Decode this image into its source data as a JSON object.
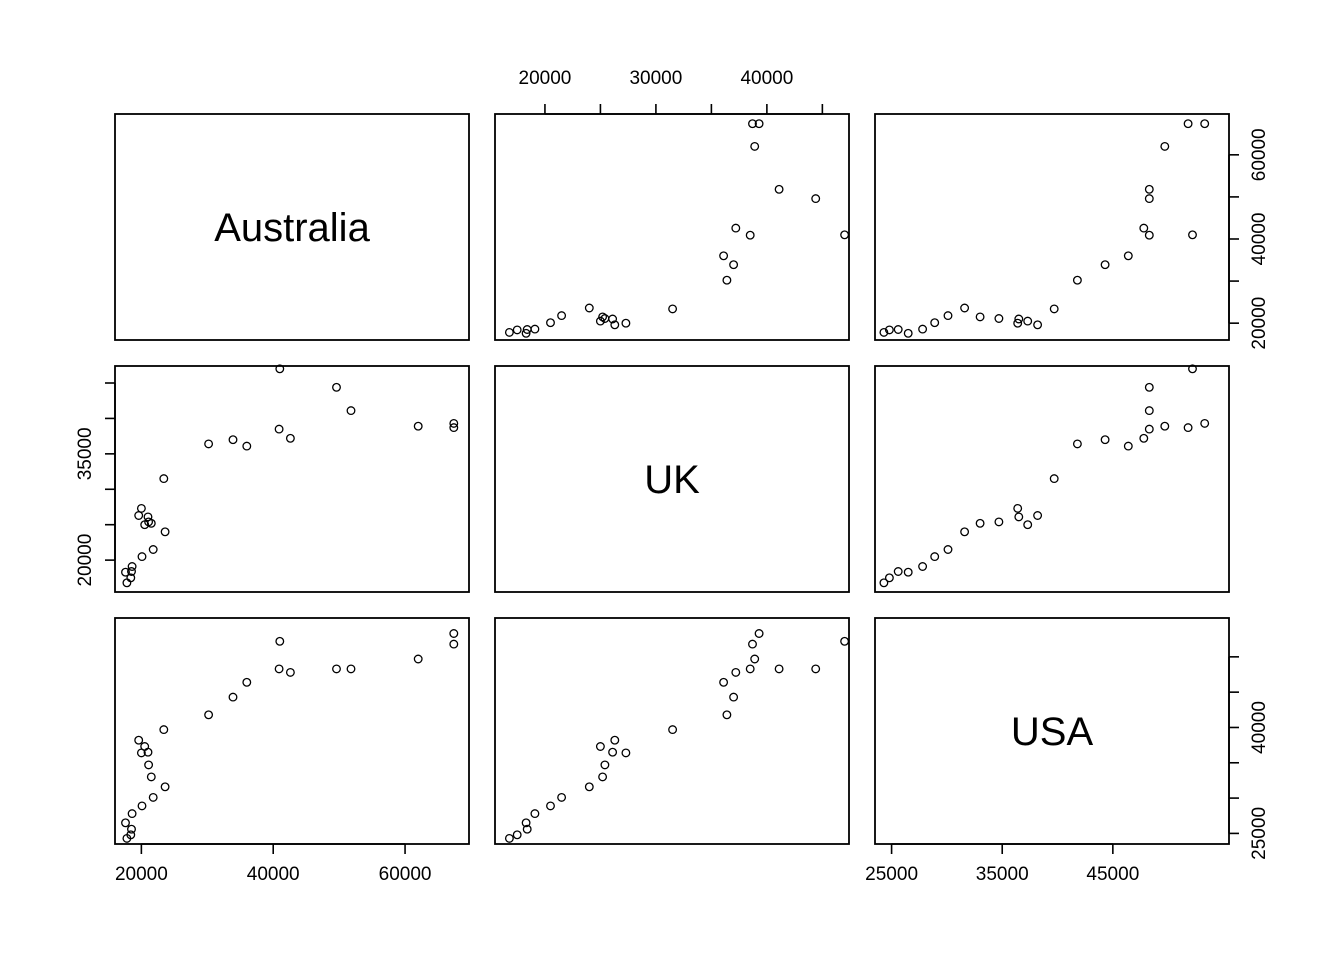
{
  "chart_data": {
    "type": "scatter",
    "kind": "pairs-matrix",
    "variables": [
      "Australia",
      "UK",
      "USA"
    ],
    "axes": {
      "Australia": {
        "ticks": [
          20000,
          40000,
          60000
        ],
        "tick_labels": [
          "20000",
          "40000",
          "60000"
        ],
        "range": [
          16000,
          69700
        ],
        "tick_panels": [
          "bottom",
          "left"
        ]
      },
      "UK": {
        "ticks": [
          20000,
          30000,
          40000
        ],
        "tick_labels": [
          "20000",
          "30000",
          "40000"
        ],
        "left_ticks": [
          20000,
          35000
        ],
        "left_tick_labels": [
          "20000",
          "35000"
        ],
        "range": [
          15500,
          47400
        ],
        "tick_panels": [
          "top",
          "left"
        ]
      },
      "USA": {
        "ticks": [
          25000,
          35000,
          45000
        ],
        "tick_labels": [
          "25000",
          "35000",
          "45000"
        ],
        "right_ticks": [
          25000,
          40000
        ],
        "right_tick_labels": [
          "25000",
          "40000"
        ],
        "range": [
          23500,
          55500
        ],
        "tick_panels": [
          "bottom",
          "right"
        ]
      }
    },
    "right_top_axis": {
      "ticks": [
        20000,
        30000,
        40000,
        50000,
        60000
      ],
      "tick_labels": [
        "20000",
        "",
        "40000",
        "",
        "60000"
      ]
    },
    "observations": [
      {
        "Australia": 17800,
        "UK": 16800,
        "USA": 24300
      },
      {
        "Australia": 18400,
        "UK": 17500,
        "USA": 24800
      },
      {
        "Australia": 17600,
        "UK": 18300,
        "USA": 26500
      },
      {
        "Australia": 18500,
        "UK": 18400,
        "USA": 25600
      },
      {
        "Australia": 18600,
        "UK": 19100,
        "USA": 27800
      },
      {
        "Australia": 20100,
        "UK": 20500,
        "USA": 28900
      },
      {
        "Australia": 21800,
        "UK": 21500,
        "USA": 30100
      },
      {
        "Australia": 23600,
        "UK": 24000,
        "USA": 31600
      },
      {
        "Australia": 21500,
        "UK": 25200,
        "USA": 33000
      },
      {
        "Australia": 21100,
        "UK": 25400,
        "USA": 34700
      },
      {
        "Australia": 21000,
        "UK": 26100,
        "USA": 36500
      },
      {
        "Australia": 20500,
        "UK": 25000,
        "USA": 37300
      },
      {
        "Australia": 19600,
        "UK": 26300,
        "USA": 38200
      },
      {
        "Australia": 20000,
        "UK": 27300,
        "USA": 36400
      },
      {
        "Australia": 23400,
        "UK": 31500,
        "USA": 39700
      },
      {
        "Australia": 30200,
        "UK": 36400,
        "USA": 41800
      },
      {
        "Australia": 33900,
        "UK": 37000,
        "USA": 44300
      },
      {
        "Australia": 36000,
        "UK": 36100,
        "USA": 46400
      },
      {
        "Australia": 42600,
        "UK": 37200,
        "USA": 47800
      },
      {
        "Australia": 40900,
        "UK": 38500,
        "USA": 48300
      },
      {
        "Australia": 49600,
        "UK": 44400,
        "USA": 48300
      },
      {
        "Australia": 51800,
        "UK": 41100,
        "USA": 48300
      },
      {
        "Australia": 62000,
        "UK": 38900,
        "USA": 49700
      },
      {
        "Australia": 67400,
        "UK": 38700,
        "USA": 51800
      },
      {
        "Australia": 67400,
        "UK": 39300,
        "USA": 53300
      },
      {
        "Australia": 41000,
        "UK": 47000,
        "USA": 52200
      }
    ]
  }
}
